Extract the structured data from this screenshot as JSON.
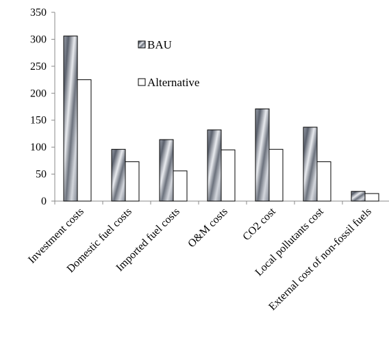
{
  "chart_data": {
    "type": "bar",
    "categories": [
      "Investment costs",
      "Domestic fuel costs",
      "Imported fuel costs",
      "O&M costs",
      "CO2 cost",
      "Local pollutants cost",
      "External cost of non-fossil fuels"
    ],
    "series": [
      {
        "name": "BAU",
        "values": [
          306,
          96,
          114,
          132,
          171,
          137,
          18
        ],
        "color": "#8a8f99",
        "style": "metallic-gradient"
      },
      {
        "name": "Alternative",
        "values": [
          225,
          73,
          56,
          95,
          96,
          73,
          14
        ],
        "color": "#ffffff",
        "style": "outline"
      }
    ],
    "title": "",
    "xlabel": "",
    "ylabel": "",
    "ylim": [
      0,
      350
    ],
    "yticks": [
      0,
      50,
      100,
      150,
      200,
      250,
      300,
      350
    ],
    "grid": false,
    "legend_position": "top-center"
  }
}
